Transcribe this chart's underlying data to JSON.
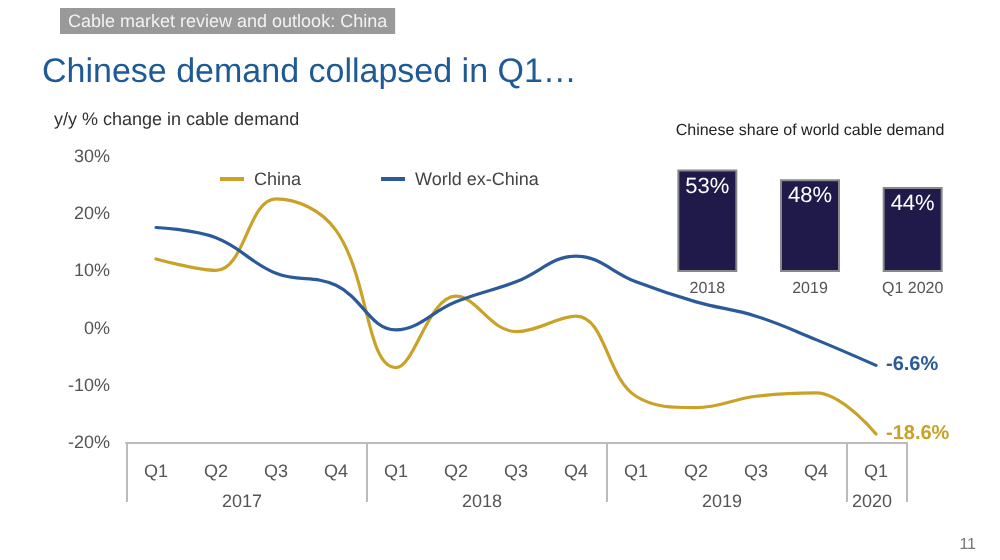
{
  "chart_data": [
    {
      "type": "line",
      "title": "Chinese demand collapsed in Q1…",
      "subtitle": "Cable market review and outlook: China",
      "ylabel": "y/y % change in cable demand",
      "categories": [
        "Q1",
        "Q2",
        "Q3",
        "Q4",
        "Q1",
        "Q2",
        "Q3",
        "Q4",
        "Q1",
        "Q2",
        "Q3",
        "Q4",
        "Q1"
      ],
      "series": [
        {
          "name": "China",
          "color": "#c9a227",
          "values": [
            12,
            10,
            22.5,
            17,
            -7,
            5.5,
            -0.7,
            2,
            -12,
            -14,
            -12,
            -11.4,
            -18.6
          ],
          "value_labels": [
            null,
            null,
            null,
            null,
            null,
            null,
            null,
            null,
            null,
            null,
            null,
            null,
            "-18.6%"
          ]
        },
        {
          "name": "World ex-China",
          "color": "#2a5a9a",
          "values": [
            17.5,
            15.7,
            9.5,
            7.4,
            -0.4,
            4.5,
            8,
            12.5,
            8,
            4.5,
            2,
            -2.1,
            -6.6
          ],
          "value_labels": [
            null,
            null,
            null,
            null,
            null,
            null,
            null,
            null,
            null,
            null,
            null,
            null,
            "-6.6%"
          ]
        }
      ],
      "ylim": [
        -20,
        30
      ],
      "yticks": [
        {
          "value": -20,
          "label": "-20%"
        },
        {
          "value": -10,
          "label": "-10%"
        },
        {
          "value": 0,
          "label": "0%"
        },
        {
          "value": 10,
          "label": "10%"
        },
        {
          "value": 20,
          "label": "20%"
        },
        {
          "value": 30,
          "label": "30%"
        }
      ],
      "grid": false,
      "legend": "top",
      "marker": "none",
      "line_style": "solid",
      "annotations": [
        "2017",
        "2018",
        "2019",
        "2020",
        "11"
      ]
    },
    {
      "type": "bar",
      "title": "Chinese share of world cable demand",
      "categories": [
        "2018",
        "2019",
        "Q1 2020"
      ],
      "values": [
        53,
        48,
        44
      ],
      "value_labels": [
        "53%",
        "48%",
        "44%"
      ],
      "color": "#1f1a4a"
    }
  ]
}
